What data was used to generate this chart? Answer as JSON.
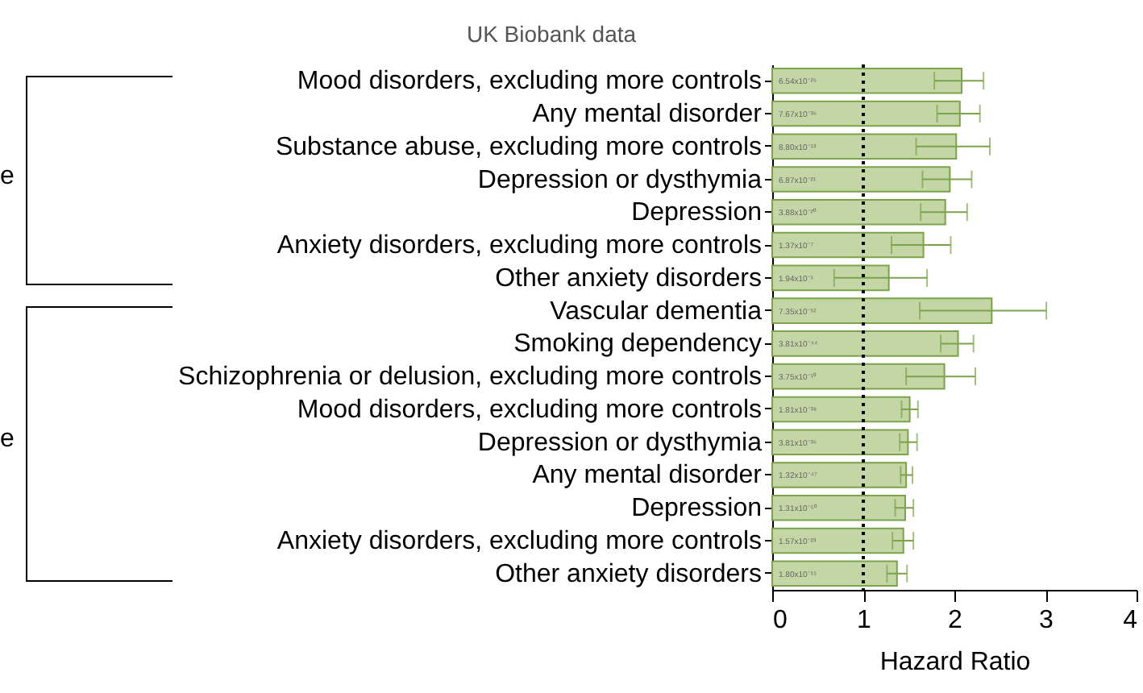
{
  "chart_data": {
    "type": "bar",
    "orientation": "horizontal",
    "title": "UK Biobank data",
    "xlabel": "Hazard Ratio",
    "categories": [
      "Mood disorders, excluding more controls",
      "Any mental disorder",
      "Substance abuse, excluding more controls",
      "Depression or dysthymia",
      "Depression",
      "Anxiety disorders, excluding more controls",
      "Other anxiety disorders",
      "Vascular dementia",
      "Smoking dependency",
      "Schizophrenia or delusion, excluding more controls",
      "Mood disorders, excluding more controls",
      "Depression or dysthymia",
      "Any mental disorder",
      "Depression",
      "Anxiety disorders, excluding more controls",
      "Other anxiety disorders"
    ],
    "series": [
      {
        "color": "#c4d6a6",
        "values": [
          2.08,
          2.06,
          2.02,
          1.95,
          1.9,
          1.66,
          1.28,
          2.41,
          2.04,
          1.89,
          1.51,
          1.49,
          1.47,
          1.46,
          1.44,
          1.37
        ],
        "errors": [
          [
            1.78,
            2.32
          ],
          [
            1.81,
            2.28
          ],
          [
            1.58,
            2.39
          ],
          [
            1.65,
            2.19
          ],
          [
            1.63,
            2.14
          ],
          [
            1.31,
            1.96
          ],
          [
            0.68,
            1.7
          ],
          [
            1.62,
            3.01
          ],
          [
            1.85,
            2.21
          ],
          [
            1.47,
            2.23
          ],
          [
            1.42,
            1.6
          ],
          [
            1.4,
            1.59
          ],
          [
            1.41,
            1.54
          ],
          [
            1.35,
            1.55
          ],
          [
            1.32,
            1.55
          ],
          [
            1.26,
            1.48
          ]
        ]
      }
    ],
    "xlim": [
      0,
      4
    ],
    "xticks": [
      0,
      1,
      2,
      3,
      4
    ],
    "ref_lines": [
      {
        "axis": "x",
        "value": 1,
        "color": "#000000",
        "line_style": "dotted"
      }
    ],
    "annotations": [
      "e",
      "e",
      "6.54x10⁻²⁶",
      "7.67x10⁻³⁶",
      "8.80x10⁻¹³",
      "6.87x10⁻²¹",
      "3.88x10⁻²⁰",
      "1.37x10⁻⁷",
      "1.94x10⁻¹",
      "7.35x10⁻¹²",
      "3.81x10⁻⁴⁴",
      "3.75x10⁻¹⁰",
      "1.81x10⁻³⁸",
      "3.81x10⁻³⁶",
      "1.32x10⁻⁴⁷",
      "1.31x10⁻⁵⁰",
      "1.57x10⁻²³",
      "1.80x10⁻¹⁵"
    ],
    "grid": false
  }
}
